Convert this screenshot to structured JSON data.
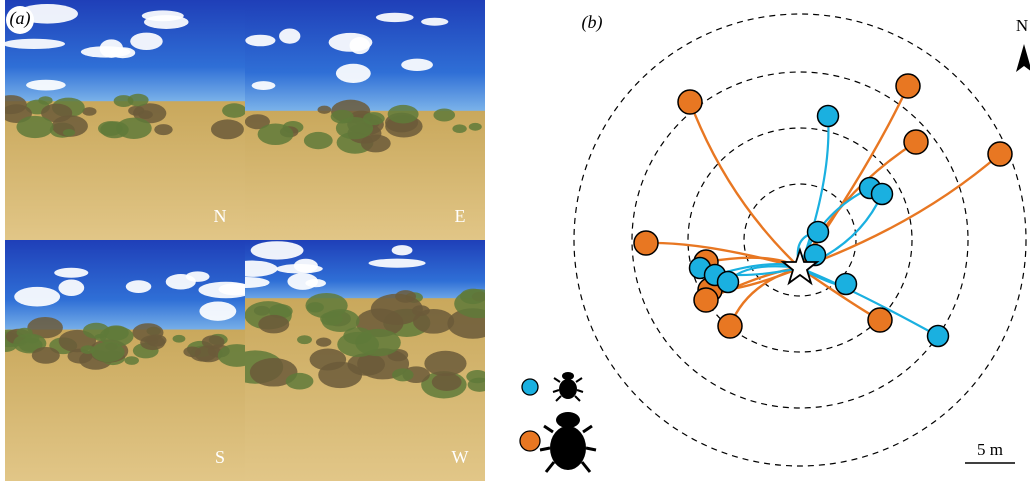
{
  "panel_a": {
    "label": "(a)",
    "photos": [
      {
        "label": "N"
      },
      {
        "label": "E"
      },
      {
        "label": "S"
      },
      {
        "label": "W"
      }
    ]
  },
  "panel_b": {
    "label": "(b)",
    "north": "N",
    "scale_bar": "5 m"
  }
}
